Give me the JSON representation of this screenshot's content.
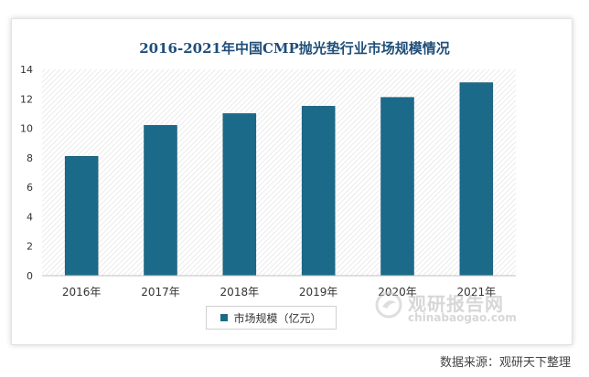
{
  "chart_data": {
    "type": "bar",
    "title": "2016-2021年中国CMP抛光垫行业市场规模情况",
    "categories": [
      "2016年",
      "2017年",
      "2018年",
      "2019年",
      "2020年",
      "2021年"
    ],
    "series": [
      {
        "name": "市场规模（亿元）",
        "values": [
          8.1,
          10.2,
          11.0,
          11.5,
          12.1,
          13.1
        ]
      }
    ],
    "xlabel": "",
    "ylabel": "",
    "ylim": [
      0,
      14
    ],
    "yticks": [
      0,
      2,
      4,
      6,
      8,
      10,
      12,
      14
    ],
    "grid": false,
    "legend_position": "bottom"
  },
  "colors": {
    "bar": "#1c6a8a",
    "title": "#1f4e79"
  },
  "watermark": {
    "name": "观研报告网",
    "domain": "chinabaogao.com"
  },
  "source": "数据来源：观研天下整理"
}
